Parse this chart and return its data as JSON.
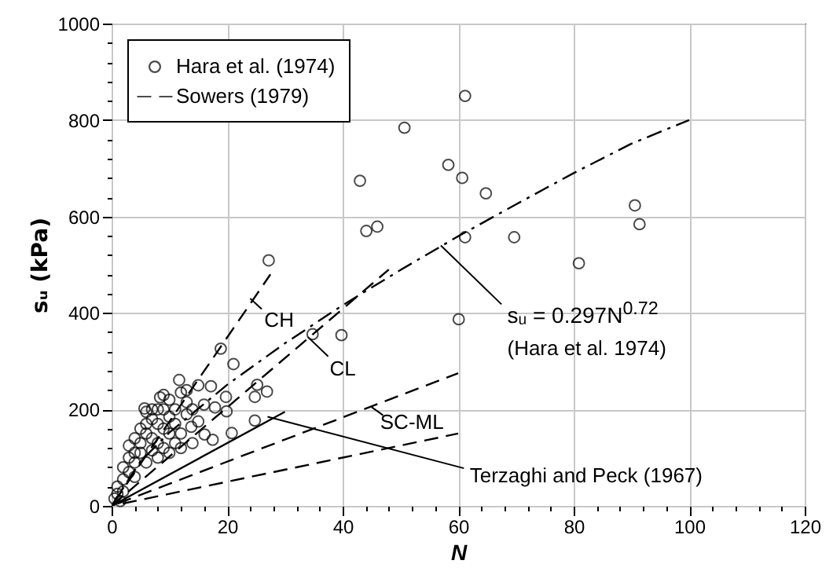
{
  "chart_data": {
    "type": "scatter",
    "xlabel": "N",
    "ylabel": "sᵤ (kPa)",
    "xlim": [
      0,
      120
    ],
    "ylim": [
      0,
      1000
    ],
    "xticks": [
      0,
      {
        "value": 4,
        "label": null
      },
      {
        "value": 8,
        "label": null
      },
      {
        "value": 12,
        "label": null
      },
      {
        "value": 16,
        "label": null
      },
      20,
      {
        "value": 24,
        "label": null
      },
      {
        "value": 28,
        "label": null
      },
      {
        "value": 32,
        "label": null
      },
      {
        "value": 36,
        "label": null
      },
      40,
      {
        "value": 44,
        "label": null
      },
      {
        "value": 48,
        "label": null
      },
      {
        "value": 52,
        "label": null
      },
      {
        "value": 56,
        "label": null
      },
      60,
      {
        "value": 64,
        "label": null
      },
      {
        "value": 68,
        "label": null
      },
      {
        "value": 72,
        "label": null
      },
      {
        "value": 76,
        "label": null
      },
      80,
      {
        "value": 84,
        "label": null
      },
      {
        "value": 88,
        "label": null
      },
      {
        "value": 92,
        "label": null
      },
      {
        "value": 96,
        "label": null
      },
      100,
      {
        "value": 104,
        "label": null
      },
      {
        "value": 108,
        "label": null
      },
      {
        "value": 112,
        "label": null
      },
      {
        "value": 116,
        "label": null
      },
      120
    ],
    "yticks": [
      0,
      {
        "value": 40,
        "label": null
      },
      {
        "value": 80,
        "label": null
      },
      {
        "value": 120,
        "label": null
      },
      {
        "value": 160,
        "label": null
      },
      200,
      {
        "value": 240,
        "label": null
      },
      {
        "value": 280,
        "label": null
      },
      {
        "value": 320,
        "label": null
      },
      {
        "value": 360,
        "label": null
      },
      400,
      {
        "value": 440,
        "label": null
      },
      {
        "value": 480,
        "label": null
      },
      {
        "value": 520,
        "label": null
      },
      {
        "value": 560,
        "label": null
      },
      600,
      {
        "value": 640,
        "label": null
      },
      {
        "value": 680,
        "label": null
      },
      {
        "value": 720,
        "label": null
      },
      {
        "value": 760,
        "label": null
      },
      800,
      {
        "value": 840,
        "label": null
      },
      {
        "value": 880,
        "label": null
      },
      {
        "value": 920,
        "label": null
      },
      {
        "value": 960,
        "label": null
      },
      1000
    ],
    "grid": true,
    "legend": "top left",
    "series": [
      {
        "name": "Hara et al. (1974)",
        "type": "scatter",
        "marker": "circle",
        "color": "#000000",
        "x": [
          61.2,
          50.7,
          43,
          58.3,
          60.7,
          64.8,
          90.6,
          91.4,
          44.1,
          46,
          61.2,
          69.7,
          80.9,
          27.2,
          60.1,
          34.8,
          39.8,
          18.9,
          21.1,
          25.2,
          24.8,
          26.9,
          24.8,
          20.8,
          19.8,
          19.9,
          17.2,
          15,
          11.7,
          17.9,
          16.1,
          17.5,
          13.8,
          5.7,
          8.4,
          12,
          13,
          10,
          9,
          8,
          7,
          6,
          7,
          8,
          9,
          10,
          11,
          12,
          13,
          14,
          15,
          16,
          11,
          9,
          7,
          6,
          5,
          4,
          3,
          5,
          4,
          3,
          2,
          3,
          2,
          1,
          1,
          2,
          0.5,
          1.5,
          4,
          6,
          8,
          10,
          14,
          12,
          5,
          6,
          9,
          10,
          8,
          11,
          13,
          7,
          4
        ],
        "values": [
          850,
          784,
          674,
          707,
          680,
          648,
          623,
          584,
          570,
          579,
          557,
          557,
          503,
          509,
          387,
          356,
          354,
          326,
          294,
          251,
          226,
          237,
          177,
          151,
          226,
          196,
          248,
          250,
          261,
          204,
          148,
          137,
          164,
          202,
          225,
          235,
          215,
          220,
          230,
          200,
          200,
          195,
          180,
          170,
          160,
          185,
          170,
          150,
          190,
          200,
          175,
          210,
          130,
          120,
          140,
          150,
          130,
          140,
          125,
          110,
          90,
          100,
          80,
          70,
          55,
          40,
          25,
          30,
          15,
          10,
          60,
          90,
          100,
          110,
          130,
          120,
          160,
          170,
          200,
          150,
          130,
          200,
          240,
          115,
          110
        ]
      },
      {
        "name": "Sowers (1979)",
        "type": "line",
        "line_style": "dashed",
        "color": "#000000",
        "x": [
          0,
          27.5
        ],
        "values": [
          0,
          480
        ]
      },
      {
        "type": "line",
        "line_style": "dashed",
        "color": "#000000",
        "x": [
          0,
          48
        ],
        "values": [
          0,
          490
        ]
      },
      {
        "type": "line",
        "line_style": "dashed",
        "color": "#000000",
        "x": [
          0,
          60
        ],
        "values": [
          0,
          275
        ]
      },
      {
        "type": "line",
        "line_style": "dashed",
        "color": "#000000",
        "x": [
          0,
          60
        ],
        "values": [
          0,
          150
        ]
      },
      {
        "type": "line",
        "line_style": "solid",
        "color": "#000000",
        "x": [
          0,
          30
        ],
        "values": [
          0,
          195
        ]
      },
      {
        "type": "line",
        "line_style": "dashdot",
        "color": "#000000",
        "x": [
          0,
          5,
          10,
          20,
          30,
          40,
          50,
          60,
          70,
          80,
          90,
          100
        ],
        "values": [
          0,
          92,
          152,
          251,
          337,
          416,
          489,
          559,
          625,
          690,
          751,
          800
        ]
      }
    ],
    "annotations": [
      {
        "text": "CH",
        "x": 24,
        "y": 430
      },
      {
        "text": "CL",
        "x": 34,
        "y": 350
      },
      {
        "text": "SC-ML",
        "x": 45,
        "y": 205
      },
      {
        "text": "Terzaghi and Peck (1967)",
        "x": 27,
        "y": 185
      },
      {
        "text": "sᵤ = 0.297N$^{0.72}$",
        "x": 57,
        "y": 540
      },
      "(Hara et al. 1974)"
    ]
  }
}
